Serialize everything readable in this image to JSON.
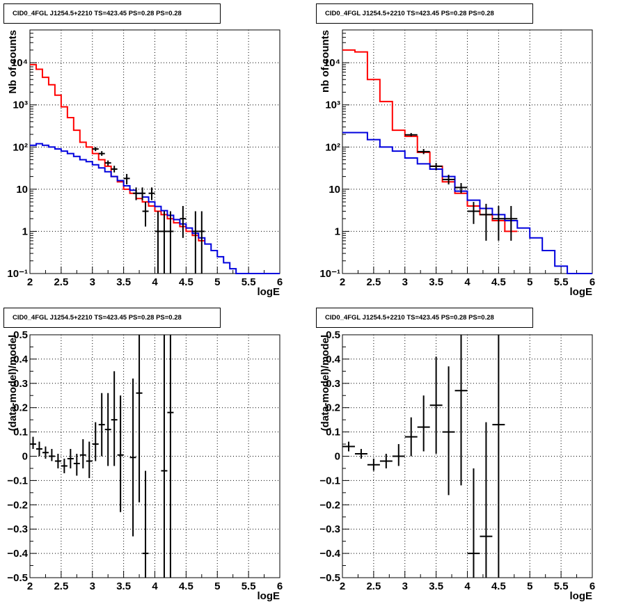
{
  "chart_data": [
    {
      "type": "histogram-errorbar",
      "title": "CID0_4FGL J1254.5+2210 TS=423.45 PS=0.28 PS=0.28",
      "xlabel": "logE",
      "ylabel": "Nb of counts",
      "xlim": [
        2,
        6
      ],
      "ylim": [
        0.1,
        60000
      ],
      "yscale": "log",
      "grid": true,
      "xticks": [
        "2",
        "2.5",
        "3",
        "3.5",
        "4",
        "4.5",
        "5",
        "5.5",
        "6"
      ],
      "yticks": [
        {
          "v": 0.1,
          "l": "10⁻¹"
        },
        {
          "v": 1,
          "l": "1"
        },
        {
          "v": 10,
          "l": "10"
        },
        {
          "v": 100,
          "l": "10²"
        },
        {
          "v": 1000,
          "l": "10³"
        },
        {
          "v": 10000,
          "l": "10⁴"
        }
      ],
      "series": [
        {
          "color": "#ff0000",
          "style": "step",
          "edges": [
            2,
            2.1,
            2.2,
            2.3,
            2.4,
            2.5,
            2.6,
            2.7,
            2.8,
            2.9,
            3,
            3.1,
            3.2,
            3.3,
            3.4,
            3.5,
            3.6,
            3.7,
            3.8,
            3.9,
            4,
            4.1,
            4.2,
            4.3,
            4.4,
            4.5,
            4.6,
            4.7,
            4.8
          ],
          "values": [
            9000,
            7000,
            4500,
            3000,
            1700,
            900,
            500,
            250,
            130,
            100,
            70,
            50,
            35,
            20,
            15,
            10,
            8,
            6,
            5,
            4,
            3,
            2.5,
            2,
            1.6,
            1.3,
            1,
            0.8,
            0.6
          ]
        },
        {
          "color": "#0000dd",
          "style": "step",
          "edges": [
            2,
            2.1,
            2.2,
            2.3,
            2.4,
            2.5,
            2.6,
            2.7,
            2.8,
            2.9,
            3,
            3.1,
            3.2,
            3.3,
            3.4,
            3.5,
            3.6,
            3.7,
            3.8,
            3.9,
            4,
            4.1,
            4.2,
            4.3,
            4.4,
            4.5,
            4.6,
            4.7,
            4.8,
            4.9,
            5,
            5.1,
            5.2,
            5.3,
            5.4,
            5.5,
            5.6,
            5.7,
            5.8,
            5.9,
            6
          ],
          "values": [
            110,
            120,
            110,
            100,
            90,
            80,
            70,
            60,
            50,
            45,
            38,
            32,
            26,
            20,
            16,
            12,
            9.5,
            8,
            6.5,
            5,
            3.9,
            3.1,
            2.4,
            1.9,
            1.5,
            1.2,
            0.9,
            0.7,
            0.5,
            0.35,
            0.25,
            0.18,
            0.13,
            0.1,
            0.1,
            0.1,
            0.1,
            0.1,
            0.1,
            0.1
          ]
        },
        {
          "color": "#000000",
          "style": "points",
          "points": [
            {
              "x": 3.05,
              "y": 90,
              "ylo": 80,
              "yhi": 100
            },
            {
              "x": 3.15,
              "y": 70,
              "ylo": 62,
              "yhi": 80
            },
            {
              "x": 3.25,
              "y": 42,
              "ylo": 36,
              "yhi": 48
            },
            {
              "x": 3.35,
              "y": 30,
              "ylo": 25,
              "yhi": 36
            },
            {
              "x": 3.55,
              "y": 18,
              "ylo": 13,
              "yhi": 23
            },
            {
              "x": 3.7,
              "y": 8,
              "ylo": 5.5,
              "yhi": 11
            },
            {
              "x": 3.8,
              "y": 8,
              "ylo": 5.5,
              "yhi": 11
            },
            {
              "x": 3.85,
              "y": 3,
              "ylo": 1.3,
              "yhi": 5
            },
            {
              "x": 3.95,
              "y": 8,
              "ylo": 5.5,
              "yhi": 11
            },
            {
              "x": 4.05,
              "y": 1,
              "ylo": 0.1,
              "yhi": 3
            },
            {
              "x": 4.15,
              "y": 1,
              "ylo": 0.1,
              "yhi": 3
            },
            {
              "x": 4.25,
              "y": 1,
              "ylo": 0.1,
              "yhi": 3
            },
            {
              "x": 4.45,
              "y": 2,
              "ylo": 0.7,
              "yhi": 4
            },
            {
              "x": 4.65,
              "y": 1,
              "ylo": 0.1,
              "yhi": 3
            },
            {
              "x": 4.75,
              "y": 1,
              "ylo": 0.1,
              "yhi": 3
            }
          ],
          "xerr": 0.05
        }
      ]
    },
    {
      "type": "histogram-errorbar",
      "title": "CID0_4FGL J1254.5+2210 TS=423.45 PS=0.28 PS=0.28",
      "xlabel": "logE",
      "ylabel": "nb of counts",
      "xlim": [
        2,
        6
      ],
      "ylim": [
        0.1,
        60000
      ],
      "yscale": "log",
      "grid": true,
      "xticks": [
        "2",
        "2.5",
        "3",
        "3.5",
        "4",
        "4.5",
        "5",
        "5.5",
        "6"
      ],
      "yticks": [
        {
          "v": 0.1,
          "l": "10⁻¹"
        },
        {
          "v": 1,
          "l": "1"
        },
        {
          "v": 10,
          "l": "10"
        },
        {
          "v": 100,
          "l": "10²"
        },
        {
          "v": 1000,
          "l": "10³"
        },
        {
          "v": 10000,
          "l": "10⁴"
        }
      ],
      "series": [
        {
          "color": "#ff0000",
          "style": "step",
          "edges": [
            2,
            2.2,
            2.4,
            2.6,
            2.8,
            3,
            3.2,
            3.4,
            3.6,
            3.8,
            4,
            4.2,
            4.4,
            4.6,
            4.8
          ],
          "values": [
            20000,
            18000,
            4000,
            1200,
            250,
            180,
            75,
            35,
            15,
            8,
            4,
            2.5,
            1.8,
            1
          ]
        },
        {
          "color": "#0000dd",
          "style": "step",
          "edges": [
            2,
            2.2,
            2.4,
            2.6,
            2.8,
            3,
            3.2,
            3.4,
            3.6,
            3.8,
            4,
            4.2,
            4.4,
            4.6,
            4.8,
            5,
            5.2,
            5.4,
            5.6,
            5.8,
            6
          ],
          "values": [
            220,
            220,
            150,
            100,
            80,
            55,
            40,
            30,
            20,
            9,
            5.5,
            3.5,
            2.5,
            1.8,
            1.2,
            0.7,
            0.35,
            0.15,
            0.1,
            0.1
          ]
        },
        {
          "color": "#000000",
          "style": "points",
          "points": [
            {
              "x": 3.1,
              "y": 195,
              "ylo": 180,
              "yhi": 215
            },
            {
              "x": 3.3,
              "y": 78,
              "ylo": 68,
              "yhi": 90
            },
            {
              "x": 3.5,
              "y": 35,
              "ylo": 28,
              "yhi": 42
            },
            {
              "x": 3.7,
              "y": 17,
              "ylo": 13,
              "yhi": 22
            },
            {
              "x": 3.9,
              "y": 11,
              "ylo": 8,
              "yhi": 14
            },
            {
              "x": 4.1,
              "y": 3,
              "ylo": 1.5,
              "yhi": 5
            },
            {
              "x": 4.3,
              "y": 2.5,
              "ylo": 0.6,
              "yhi": 4.5
            },
            {
              "x": 4.5,
              "y": 2,
              "ylo": 0.6,
              "yhi": 4
            },
            {
              "x": 4.7,
              "y": 2,
              "ylo": 0.6,
              "yhi": 4
            }
          ],
          "xerr": 0.1
        }
      ]
    },
    {
      "type": "scatter-errorbar",
      "title": "CID0_4FGL J1254.5+2210 TS=423.45 PS=0.28 PS=0.28",
      "xlabel": "logE",
      "ylabel": "(data-model)/model",
      "xlim": [
        2,
        6
      ],
      "ylim": [
        -0.5,
        0.5
      ],
      "yscale": "linear",
      "grid": true,
      "xticks": [
        "2",
        "2.5",
        "3",
        "3.5",
        "4",
        "4.5",
        "5",
        "5.5",
        "6"
      ],
      "yticks": [
        {
          "v": -0.5,
          "l": "−0.5"
        },
        {
          "v": -0.4,
          "l": "−0.4"
        },
        {
          "v": -0.3,
          "l": "−0.3"
        },
        {
          "v": -0.2,
          "l": "−0.2"
        },
        {
          "v": -0.1,
          "l": "−0.1"
        },
        {
          "v": 0,
          "l": "0"
        },
        {
          "v": 0.1,
          "l": "0.1"
        },
        {
          "v": 0.2,
          "l": "0.2"
        },
        {
          "v": 0.3,
          "l": "0.3"
        },
        {
          "v": 0.4,
          "l": "0.4"
        },
        {
          "v": 0.5,
          "l": "0.5"
        }
      ],
      "series": [
        {
          "color": "#000000",
          "style": "points",
          "xerr": 0.05,
          "points": [
            {
              "x": 2.05,
              "y": 0.05,
              "ylo": 0.03,
              "yhi": 0.08
            },
            {
              "x": 2.15,
              "y": 0.03,
              "ylo": 0.0,
              "yhi": 0.06
            },
            {
              "x": 2.25,
              "y": 0.015,
              "ylo": -0.01,
              "yhi": 0.04
            },
            {
              "x": 2.35,
              "y": 0.0,
              "ylo": -0.02,
              "yhi": 0.03
            },
            {
              "x": 2.45,
              "y": -0.02,
              "ylo": -0.05,
              "yhi": 0.01
            },
            {
              "x": 2.55,
              "y": -0.04,
              "ylo": -0.07,
              "yhi": -0.01
            },
            {
              "x": 2.65,
              "y": -0.01,
              "ylo": -0.05,
              "yhi": 0.03
            },
            {
              "x": 2.75,
              "y": -0.03,
              "ylo": -0.08,
              "yhi": 0.01
            },
            {
              "x": 2.85,
              "y": 0.005,
              "ylo": -0.05,
              "yhi": 0.07
            },
            {
              "x": 2.95,
              "y": -0.02,
              "ylo": -0.09,
              "yhi": 0.06
            },
            {
              "x": 3.05,
              "y": 0.05,
              "ylo": -0.02,
              "yhi": 0.14
            },
            {
              "x": 3.15,
              "y": 0.13,
              "ylo": 0.0,
              "yhi": 0.26
            },
            {
              "x": 3.25,
              "y": 0.11,
              "ylo": -0.04,
              "yhi": 0.26
            },
            {
              "x": 3.35,
              "y": 0.15,
              "ylo": -0.04,
              "yhi": 0.35
            },
            {
              "x": 3.45,
              "y": 0.005,
              "ylo": -0.23,
              "yhi": 0.25
            },
            {
              "x": 3.65,
              "y": -0.005,
              "ylo": -0.33,
              "yhi": 0.32
            },
            {
              "x": 3.75,
              "y": 0.26,
              "ylo": -0.19,
              "yhi": 0.5
            },
            {
              "x": 3.85,
              "y": -0.4,
              "ylo": -0.5,
              "yhi": -0.06
            },
            {
              "x": 4.15,
              "y": -0.06,
              "ylo": -0.5,
              "yhi": 0.5
            },
            {
              "x": 4.25,
              "y": 0.18,
              "ylo": -0.5,
              "yhi": 0.5
            }
          ]
        }
      ]
    },
    {
      "type": "scatter-errorbar",
      "title": "CID0_4FGL J1254.5+2210 TS=423.45 PS=0.28 PS=0.28",
      "xlabel": "logE",
      "ylabel": "(data-model)/model",
      "xlim": [
        2,
        6
      ],
      "ylim": [
        -0.5,
        0.5
      ],
      "yscale": "linear",
      "grid": true,
      "xticks": [
        "2",
        "2.5",
        "3",
        "3.5",
        "4",
        "4.5",
        "5",
        "5.5",
        "6"
      ],
      "yticks": [
        {
          "v": -0.5,
          "l": "−0.5"
        },
        {
          "v": -0.4,
          "l": "−0.4"
        },
        {
          "v": -0.3,
          "l": "−0.3"
        },
        {
          "v": -0.2,
          "l": "−0.2"
        },
        {
          "v": -0.1,
          "l": "−0.1"
        },
        {
          "v": 0,
          "l": "0"
        },
        {
          "v": 0.1,
          "l": "0.1"
        },
        {
          "v": 0.2,
          "l": "0.2"
        },
        {
          "v": 0.3,
          "l": "0.3"
        },
        {
          "v": 0.4,
          "l": "0.4"
        },
        {
          "v": 0.5,
          "l": "0.5"
        }
      ],
      "series": [
        {
          "color": "#000000",
          "style": "points",
          "xerr": 0.1,
          "points": [
            {
              "x": 2.1,
              "y": 0.04,
              "ylo": 0.02,
              "yhi": 0.06
            },
            {
              "x": 2.3,
              "y": 0.01,
              "ylo": -0.01,
              "yhi": 0.03
            },
            {
              "x": 2.5,
              "y": -0.035,
              "ylo": -0.06,
              "yhi": -0.01
            },
            {
              "x": 2.7,
              "y": -0.02,
              "ylo": -0.05,
              "yhi": 0.01
            },
            {
              "x": 2.9,
              "y": 0.0,
              "ylo": -0.04,
              "yhi": 0.05
            },
            {
              "x": 3.1,
              "y": 0.08,
              "ylo": 0.0,
              "yhi": 0.16
            },
            {
              "x": 3.3,
              "y": 0.12,
              "ylo": 0.02,
              "yhi": 0.25
            },
            {
              "x": 3.5,
              "y": 0.21,
              "ylo": 0.01,
              "yhi": 0.41
            },
            {
              "x": 3.7,
              "y": 0.1,
              "ylo": -0.16,
              "yhi": 0.37
            },
            {
              "x": 3.9,
              "y": 0.27,
              "ylo": -0.12,
              "yhi": 0.5
            },
            {
              "x": 4.1,
              "y": -0.4,
              "ylo": -0.5,
              "yhi": -0.05
            },
            {
              "x": 4.3,
              "y": -0.33,
              "ylo": -0.5,
              "yhi": 0.14
            },
            {
              "x": 4.5,
              "y": 0.13,
              "ylo": -0.5,
              "yhi": 0.5
            }
          ]
        }
      ]
    }
  ]
}
